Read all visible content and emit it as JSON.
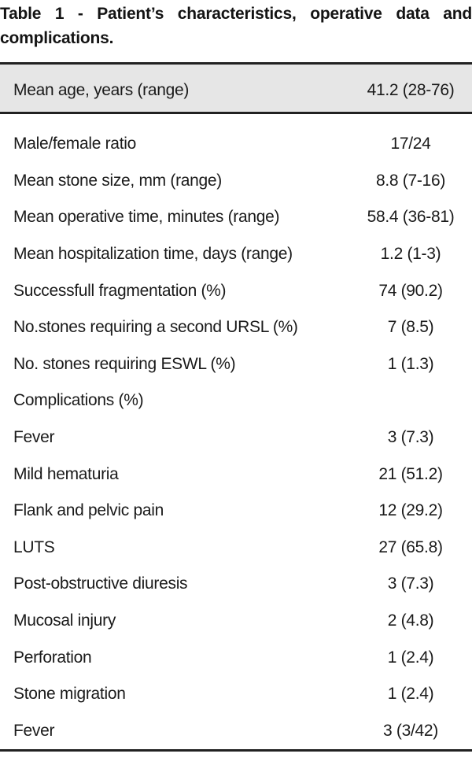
{
  "title": {
    "line1": "Table 1 - Patient’s characteristics, operative data and",
    "line2": "complications.",
    "full": "Table 1 - Patient’s characteristics, operative data and complications."
  },
  "table": {
    "header_row": {
      "label": "Mean age, years (range)",
      "value": "41.2 (28-76)"
    },
    "rows": [
      {
        "label": "Male/female ratio",
        "value": "17/24"
      },
      {
        "label": "Mean stone size, mm (range)",
        "value": "8.8 (7-16)"
      },
      {
        "label": "Mean operative time, minutes (range)",
        "value": "58.4 (36-81)"
      },
      {
        "label": "Mean hospitalization time, days (range)",
        "value": "1.2 (1-3)"
      },
      {
        "label": "Successfull fragmentation (%)",
        "value": "74 (90.2)"
      },
      {
        "label": "No.stones requiring a second URSL (%)",
        "value": "7 (8.5)"
      },
      {
        "label": "No. stones requiring ESWL (%)",
        "value": "1 (1.3)"
      },
      {
        "label": "Complications (%)",
        "value": ""
      },
      {
        "label": "Fever",
        "value": "3 (7.3)"
      },
      {
        "label": "Mild hematuria",
        "value": "21 (51.2)"
      },
      {
        "label": "Flank and pelvic pain",
        "value": "12 (29.2)"
      },
      {
        "label": "LUTS",
        "value": "27 (65.8)"
      },
      {
        "label": "Post-obstructive diuresis",
        "value": "3 (7.3)"
      },
      {
        "label": "Mucosal injury",
        "value": "2 (4.8)"
      },
      {
        "label": "Perforation",
        "value": "1 (2.4)"
      },
      {
        "label": "Stone migration",
        "value": "1 (2.4)"
      },
      {
        "label": "Fever",
        "value": "3 (3/42)"
      }
    ]
  },
  "colors": {
    "header_row_bg": "#e6e6e6",
    "rule": "#212121",
    "text": "#1a1a1a"
  }
}
